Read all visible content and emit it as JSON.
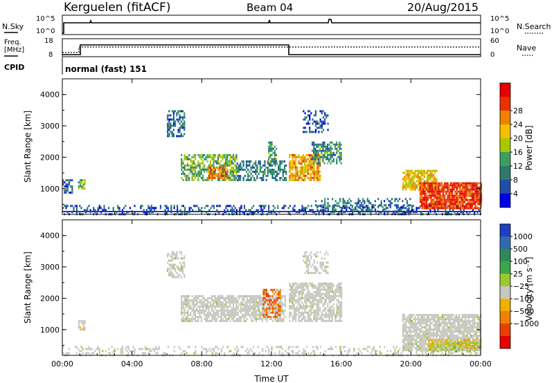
{
  "header": {
    "station": "Kerguelen (fitACF)",
    "beam": "Beam 04",
    "date": "20/Aug/2015"
  },
  "status_panel": {
    "nsky_label": "N.Sky",
    "nsearch_label": "N.Search",
    "freq_label_line1": "Freq.",
    "freq_label_line2": "[MHz]",
    "nave_label": "Nave",
    "cpid_label": "CPID",
    "cpid_value": "normal (fast) 151",
    "noise_left_ticks": [
      "10^5",
      "10^0"
    ],
    "noise_right_ticks": [
      "10^5",
      "10^0"
    ],
    "freq_ticks": [
      "18",
      "8"
    ],
    "nave_ticks": [
      "60",
      "0"
    ]
  },
  "colors": {
    "power_scale": [
      "#0000e6",
      "#1f4fa8",
      "#2f7a6a",
      "#3aa060",
      "#a8c800",
      "#f5c000",
      "#f08000",
      "#e83000",
      "#e60000"
    ],
    "velocity_scale": [
      "#1f3fc0",
      "#2f6ab0",
      "#2f8a5a",
      "#3aa848",
      "#9ac830",
      "#c8c8c0",
      "#f0b000",
      "#f08000",
      "#e84000",
      "#e60000"
    ],
    "ground_scatter": "#c8c8c0"
  },
  "chart_data": [
    {
      "type": "heatmap",
      "title": "",
      "xlabel": "",
      "ylabel": "Slant Range [km]",
      "xticks": [
        "00:00",
        "04:00",
        "08:00",
        "12:00",
        "16:00",
        "20:00",
        "00:00"
      ],
      "yticks": [
        "1000",
        "2000",
        "3000",
        "4000"
      ],
      "xlim_hours": [
        0,
        24
      ],
      "ylim_km": [
        180,
        4500
      ],
      "colorbar": {
        "label": "Power [dB]",
        "ticks": [
          "4",
          "8",
          "12",
          "16",
          "20",
          "24",
          "28"
        ],
        "range": [
          0,
          32
        ]
      },
      "regions": [
        {
          "t0": 0.0,
          "t1": 24.0,
          "r0": 200,
          "r1": 480,
          "value": 6,
          "density": 0.35
        },
        {
          "t0": 0.0,
          "t1": 0.6,
          "r0": 900,
          "r1": 1300,
          "value": 6,
          "density": 0.5
        },
        {
          "t0": 0.9,
          "t1": 1.3,
          "r0": 1000,
          "r1": 1300,
          "value": 14,
          "density": 0.8
        },
        {
          "t0": 6.0,
          "t1": 7.0,
          "r0": 2700,
          "r1": 3500,
          "value": 7,
          "density": 0.55
        },
        {
          "t0": 6.8,
          "t1": 10.0,
          "r0": 1300,
          "r1": 2100,
          "value": 13,
          "density": 0.65
        },
        {
          "t0": 8.3,
          "t1": 9.5,
          "r0": 1350,
          "r1": 1700,
          "value": 24,
          "density": 0.7
        },
        {
          "t0": 10.0,
          "t1": 12.8,
          "r0": 1300,
          "r1": 1900,
          "value": 9,
          "density": 0.55
        },
        {
          "t0": 11.8,
          "t1": 12.3,
          "r0": 1900,
          "r1": 2500,
          "value": 11,
          "density": 0.6
        },
        {
          "t0": 13.0,
          "t1": 14.8,
          "r0": 1300,
          "r1": 2100,
          "value": 21,
          "density": 0.75
        },
        {
          "t0": 14.3,
          "t1": 16.0,
          "r0": 1800,
          "r1": 2500,
          "value": 10,
          "density": 0.6
        },
        {
          "t0": 13.8,
          "t1": 15.2,
          "r0": 2800,
          "r1": 3500,
          "value": 6,
          "density": 0.4
        },
        {
          "t0": 19.5,
          "t1": 21.5,
          "r0": 950,
          "r1": 1600,
          "value": 19,
          "density": 0.8
        },
        {
          "t0": 20.5,
          "t1": 24.0,
          "r0": 350,
          "r1": 1200,
          "value": 27,
          "density": 0.9
        },
        {
          "t0": 14.5,
          "t1": 20.0,
          "r0": 300,
          "r1": 700,
          "value": 8,
          "density": 0.3
        }
      ]
    },
    {
      "type": "heatmap",
      "title": "",
      "xlabel": "Time UT",
      "ylabel": "Slant Range [km]",
      "xticks": [
        "00:00",
        "04:00",
        "08:00",
        "12:00",
        "16:00",
        "20:00",
        "00:00"
      ],
      "yticks": [
        "1000",
        "2000",
        "3000",
        "4000"
      ],
      "xlim_hours": [
        0,
        24
      ],
      "ylim_km": [
        180,
        4500
      ],
      "colorbar": {
        "label": "Velocity [m s⁻¹]",
        "ticks": [
          "1000",
          "500",
          "100",
          "25",
          "−25",
          "−100",
          "−500",
          "−1000"
        ],
        "range": [
          -1200,
          1200
        ]
      },
      "regions": [
        {
          "t0": 0.0,
          "t1": 24.0,
          "r0": 200,
          "r1": 480,
          "value": -60,
          "density": 0.3
        },
        {
          "t0": 0.9,
          "t1": 1.3,
          "r0": 1000,
          "r1": 1300,
          "value": -150,
          "density": 0.7
        },
        {
          "t0": 6.0,
          "t1": 7.0,
          "r0": 2700,
          "r1": 3500,
          "value": 0,
          "density": 0.5
        },
        {
          "t0": 6.8,
          "t1": 12.8,
          "r0": 1300,
          "r1": 2100,
          "value": 0,
          "density": 0.75
        },
        {
          "t0": 11.5,
          "t1": 12.5,
          "r0": 1400,
          "r1": 2300,
          "value": -700,
          "density": 0.5
        },
        {
          "t0": 13.0,
          "t1": 16.0,
          "r0": 1300,
          "r1": 2500,
          "value": 0,
          "density": 0.75
        },
        {
          "t0": 13.8,
          "t1": 15.2,
          "r0": 2800,
          "r1": 3500,
          "value": 0,
          "density": 0.4
        },
        {
          "t0": 19.5,
          "t1": 24.0,
          "r0": 350,
          "r1": 1500,
          "value": 0,
          "density": 0.85
        },
        {
          "t0": 21.0,
          "t1": 24.0,
          "r0": 400,
          "r1": 700,
          "value": -400,
          "density": 0.45
        },
        {
          "t0": 21.0,
          "t1": 24.0,
          "r0": 300,
          "r1": 600,
          "value": 150,
          "density": 0.3
        }
      ]
    }
  ]
}
